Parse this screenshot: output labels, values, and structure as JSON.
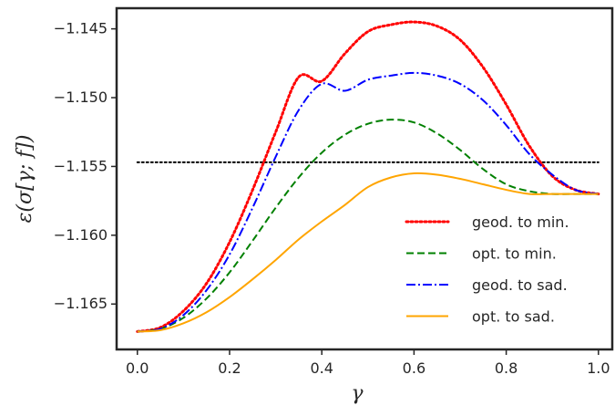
{
  "chart_data": {
    "type": "line",
    "title": "",
    "xlabel": "γ",
    "ylabel": "ε(σ[γ; f])",
    "xlim": [
      -0.045,
      1.03
    ],
    "ylim": [
      -1.1683,
      -1.1435
    ],
    "grid": false,
    "legend_position": "lower-right",
    "x_ticks": [
      0.0,
      0.2,
      0.4,
      0.6,
      0.8,
      1.0
    ],
    "x_tick_labels": [
      "0.0",
      "0.2",
      "0.4",
      "0.6",
      "0.8",
      "1.0"
    ],
    "y_ticks": [
      -1.145,
      -1.15,
      -1.155,
      -1.16,
      -1.165
    ],
    "y_tick_labels": [
      "−1.145",
      "−1.150",
      "−1.155",
      "−1.160",
      "−1.165"
    ],
    "x": [
      0.0,
      0.05,
      0.1,
      0.15,
      0.2,
      0.25,
      0.3,
      0.35,
      0.4,
      0.45,
      0.5,
      0.55,
      0.6,
      0.65,
      0.7,
      0.75,
      0.8,
      0.85,
      0.9,
      0.95,
      1.0
    ],
    "series": [
      {
        "name": "geod. to min.",
        "color": "#ff0000",
        "dash": "dotted",
        "values": [
          -1.167,
          -1.1667,
          -1.1655,
          -1.1635,
          -1.1605,
          -1.1567,
          -1.1525,
          -1.1485,
          -1.1488,
          -1.1468,
          -1.1452,
          -1.1447,
          -1.1445,
          -1.1448,
          -1.1458,
          -1.1478,
          -1.1505,
          -1.1535,
          -1.1557,
          -1.1567,
          -1.157
        ]
      },
      {
        "name": "opt. to min.",
        "color": "#008000",
        "dash": "dashed",
        "values": [
          -1.167,
          -1.1668,
          -1.166,
          -1.1646,
          -1.1627,
          -1.1604,
          -1.158,
          -1.1558,
          -1.154,
          -1.1527,
          -1.1519,
          -1.1516,
          -1.1518,
          -1.1526,
          -1.1538,
          -1.1552,
          -1.1563,
          -1.1568,
          -1.157,
          -1.157,
          -1.157
        ]
      },
      {
        "name": "geod. to sad.",
        "color": "#0000ff",
        "dash": "dashdot",
        "values": [
          -1.167,
          -1.1668,
          -1.1658,
          -1.164,
          -1.1614,
          -1.158,
          -1.1543,
          -1.1509,
          -1.149,
          -1.1495,
          -1.1487,
          -1.1484,
          -1.1482,
          -1.1484,
          -1.149,
          -1.1502,
          -1.152,
          -1.1541,
          -1.1556,
          -1.1567,
          -1.157
        ]
      },
      {
        "name": "opt. to sad.",
        "color": "#ffa500",
        "dash": "solid",
        "values": [
          -1.167,
          -1.1669,
          -1.1664,
          -1.1656,
          -1.1645,
          -1.1632,
          -1.1618,
          -1.1603,
          -1.159,
          -1.1578,
          -1.1565,
          -1.1558,
          -1.1555,
          -1.1556,
          -1.1559,
          -1.1563,
          -1.1567,
          -1.157,
          -1.157,
          -1.157,
          -1.157
        ]
      }
    ],
    "reference_lines": [
      {
        "y": -1.1547,
        "x_range": [
          0.0,
          1.0
        ],
        "color": "#000000",
        "dash": "dotted"
      }
    ]
  }
}
